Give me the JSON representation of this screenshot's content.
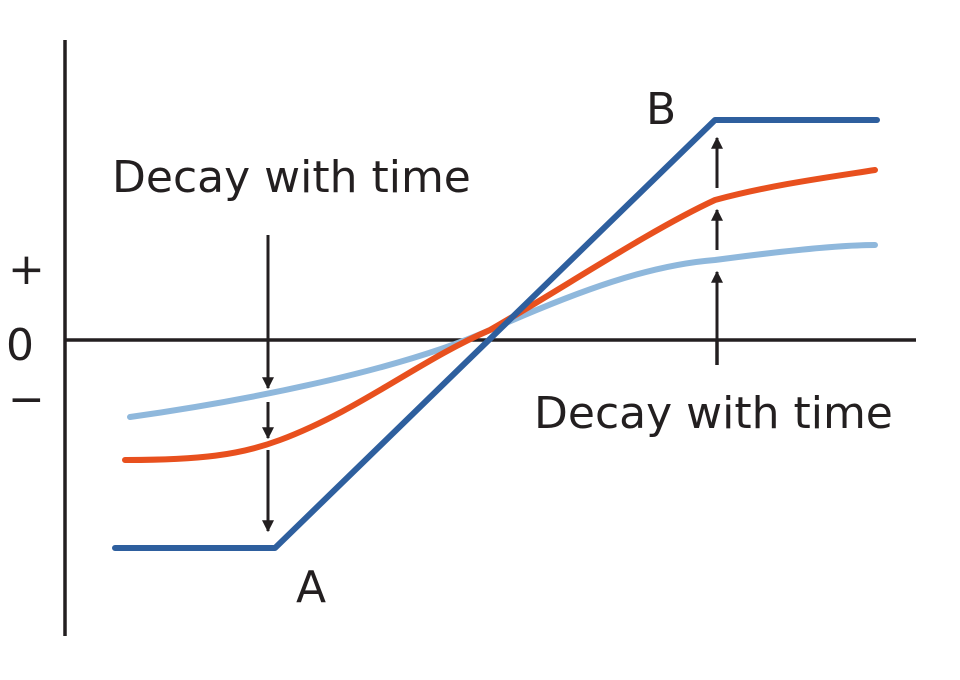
{
  "axis_labels": {
    "plus": "+",
    "zero": "0",
    "minus": "−"
  },
  "annotations": [
    "Decay with time",
    "Decay with time"
  ],
  "points": {
    "a": "A",
    "b": "B"
  }
}
